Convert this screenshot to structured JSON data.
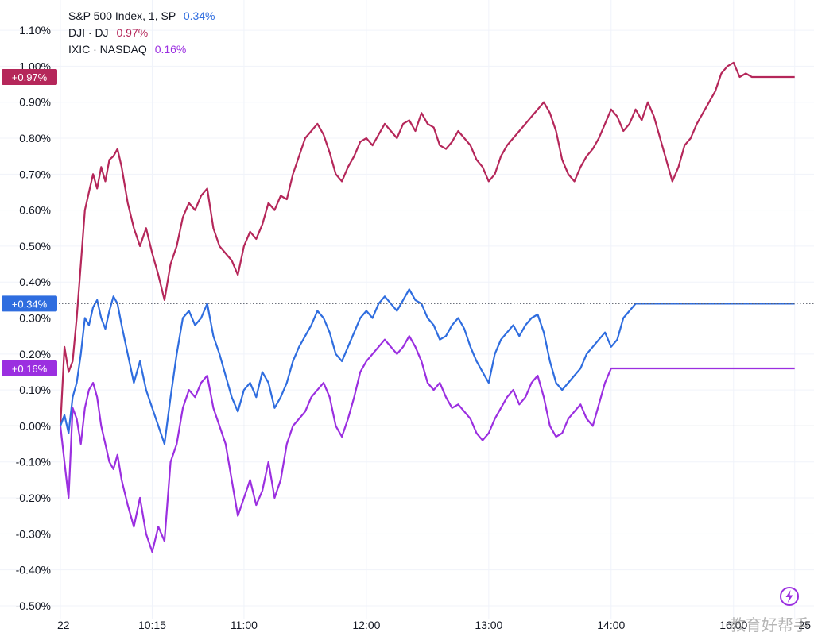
{
  "legend": [
    {
      "label": "S&P 500 Index, 1, SP",
      "value": "0.34%",
      "color": "#2f6ddf"
    },
    {
      "label": "DJI · DJ",
      "value": "0.97%",
      "color": "#b5275a"
    },
    {
      "label": "IXIC · NASDAQ",
      "value": "0.16%",
      "color": "#9b2fe0"
    }
  ],
  "price_badges": [
    {
      "text": "+0.97%",
      "value": 0.97,
      "color": "#b5275a"
    },
    {
      "text": "+0.34%",
      "value": 0.34,
      "color": "#2f6ddf"
    },
    {
      "text": "+0.16%",
      "value": 0.16,
      "color": "#9b2fe0"
    }
  ],
  "watermark": "教育好帮手",
  "icon_color": "#9b2fe0",
  "chart_data": {
    "type": "line",
    "y_ticks": [
      "1.10%",
      "1.00%",
      "0.90%",
      "0.80%",
      "0.70%",
      "0.60%",
      "0.50%",
      "0.40%",
      "0.30%",
      "0.20%",
      "0.10%",
      "0.00%",
      "-0.10%",
      "-0.20%",
      "-0.30%",
      "-0.40%",
      "-0.50%"
    ],
    "y_tick_values": [
      1.1,
      1.0,
      0.9,
      0.8,
      0.7,
      0.6,
      0.5,
      0.4,
      0.3,
      0.2,
      0.1,
      0.0,
      -0.1,
      -0.2,
      -0.3,
      -0.4,
      -0.5
    ],
    "x_ticks": [
      "22",
      "10:15",
      "11:00",
      "12:00",
      "13:00",
      "14:00",
      "16:00",
      "25"
    ],
    "x_tick_minutes": [
      30,
      75,
      120,
      180,
      240,
      300,
      360,
      390
    ],
    "ylim": [
      -0.52,
      1.14
    ],
    "xlim": [
      30,
      394
    ],
    "grid": true,
    "zero_line": true,
    "current_line_value": 0.34,
    "series": [
      {
        "name": "DJI · DJ",
        "color": "#b5275a",
        "x": [
          30,
          32,
          34,
          36,
          38,
          40,
          42,
          44,
          46,
          48,
          50,
          52,
          54,
          56,
          58,
          60,
          63,
          66,
          69,
          72,
          75,
          78,
          81,
          84,
          87,
          90,
          93,
          96,
          99,
          102,
          105,
          108,
          111,
          114,
          117,
          120,
          123,
          126,
          129,
          132,
          135,
          138,
          141,
          144,
          147,
          150,
          153,
          156,
          159,
          162,
          165,
          168,
          171,
          174,
          177,
          180,
          183,
          186,
          189,
          192,
          195,
          198,
          201,
          204,
          207,
          210,
          213,
          216,
          219,
          222,
          225,
          228,
          231,
          234,
          237,
          240,
          243,
          246,
          249,
          252,
          255,
          258,
          261,
          264,
          267,
          270,
          273,
          276,
          279,
          282,
          285,
          288,
          291,
          294,
          297,
          300,
          303,
          306,
          309,
          312,
          315,
          318,
          321,
          324,
          327,
          330,
          333,
          336,
          339,
          342,
          345,
          348,
          351,
          354,
          357,
          360,
          363,
          366,
          369,
          372,
          375,
          378,
          381,
          384,
          387,
          390
        ],
        "values": [
          0.0,
          0.22,
          0.15,
          0.18,
          0.3,
          0.45,
          0.6,
          0.65,
          0.7,
          0.66,
          0.72,
          0.68,
          0.74,
          0.75,
          0.77,
          0.72,
          0.62,
          0.55,
          0.5,
          0.55,
          0.48,
          0.42,
          0.35,
          0.45,
          0.5,
          0.58,
          0.62,
          0.6,
          0.64,
          0.66,
          0.55,
          0.5,
          0.48,
          0.46,
          0.42,
          0.5,
          0.54,
          0.52,
          0.56,
          0.62,
          0.6,
          0.64,
          0.63,
          0.7,
          0.75,
          0.8,
          0.82,
          0.84,
          0.81,
          0.76,
          0.7,
          0.68,
          0.72,
          0.75,
          0.79,
          0.8,
          0.78,
          0.81,
          0.84,
          0.82,
          0.8,
          0.84,
          0.85,
          0.82,
          0.87,
          0.84,
          0.83,
          0.78,
          0.77,
          0.79,
          0.82,
          0.8,
          0.78,
          0.74,
          0.72,
          0.68,
          0.7,
          0.75,
          0.78,
          0.8,
          0.82,
          0.84,
          0.86,
          0.88,
          0.9,
          0.87,
          0.82,
          0.74,
          0.7,
          0.68,
          0.72,
          0.75,
          0.77,
          0.8,
          0.84,
          0.88,
          0.86,
          0.82,
          0.84,
          0.88,
          0.85,
          0.9,
          0.86,
          0.8,
          0.74,
          0.68,
          0.72,
          0.78,
          0.8,
          0.84,
          0.87,
          0.9,
          0.93,
          0.98,
          1.0,
          1.01,
          0.97,
          0.98,
          0.97,
          0.97,
          0.97,
          0.97,
          0.97,
          0.97,
          0.97,
          0.97
        ]
      },
      {
        "name": "S&P 500 Index, 1, SP",
        "color": "#2f6ddf",
        "x": [
          30,
          32,
          34,
          36,
          38,
          40,
          42,
          44,
          46,
          48,
          50,
          52,
          54,
          56,
          58,
          60,
          63,
          66,
          69,
          72,
          75,
          78,
          81,
          84,
          87,
          90,
          93,
          96,
          99,
          102,
          105,
          108,
          111,
          114,
          117,
          120,
          123,
          126,
          129,
          132,
          135,
          138,
          141,
          144,
          147,
          150,
          153,
          156,
          159,
          162,
          165,
          168,
          171,
          174,
          177,
          180,
          183,
          186,
          189,
          192,
          195,
          198,
          201,
          204,
          207,
          210,
          213,
          216,
          219,
          222,
          225,
          228,
          231,
          234,
          237,
          240,
          243,
          246,
          249,
          252,
          255,
          258,
          261,
          264,
          267,
          270,
          273,
          276,
          279,
          282,
          285,
          288,
          291,
          294,
          297,
          300,
          303,
          306,
          309,
          312,
          315,
          318,
          321,
          324,
          327,
          330,
          333,
          336,
          339,
          342,
          345,
          348,
          351,
          354,
          357,
          360,
          363,
          366,
          369,
          372,
          375,
          378,
          381,
          384,
          387,
          390
        ],
        "values": [
          0.0,
          0.03,
          -0.02,
          0.08,
          0.12,
          0.2,
          0.3,
          0.28,
          0.33,
          0.35,
          0.3,
          0.27,
          0.32,
          0.36,
          0.34,
          0.28,
          0.2,
          0.12,
          0.18,
          0.1,
          0.05,
          0.0,
          -0.05,
          0.08,
          0.2,
          0.3,
          0.32,
          0.28,
          0.3,
          0.34,
          0.25,
          0.2,
          0.14,
          0.08,
          0.04,
          0.1,
          0.12,
          0.08,
          0.15,
          0.12,
          0.05,
          0.08,
          0.12,
          0.18,
          0.22,
          0.25,
          0.28,
          0.32,
          0.3,
          0.26,
          0.2,
          0.18,
          0.22,
          0.26,
          0.3,
          0.32,
          0.3,
          0.34,
          0.36,
          0.34,
          0.32,
          0.35,
          0.38,
          0.35,
          0.34,
          0.3,
          0.28,
          0.24,
          0.25,
          0.28,
          0.3,
          0.27,
          0.22,
          0.18,
          0.15,
          0.12,
          0.2,
          0.24,
          0.26,
          0.28,
          0.25,
          0.28,
          0.3,
          0.31,
          0.26,
          0.18,
          0.12,
          0.1,
          0.12,
          0.14,
          0.16,
          0.2,
          0.22,
          0.24,
          0.26,
          0.22,
          0.24,
          0.3,
          0.32,
          0.34,
          0.34,
          0.34,
          0.34,
          0.34,
          0.34,
          0.34,
          0.34,
          0.34,
          0.34,
          0.34,
          0.34,
          0.34,
          0.34,
          0.34,
          0.34,
          0.34,
          0.34,
          0.34,
          0.34,
          0.34,
          0.34,
          0.34,
          0.34,
          0.34,
          0.34,
          0.34
        ]
      },
      {
        "name": "IXIC · NASDAQ",
        "color": "#9b2fe0",
        "x": [
          30,
          32,
          34,
          36,
          38,
          40,
          42,
          44,
          46,
          48,
          50,
          52,
          54,
          56,
          58,
          60,
          63,
          66,
          69,
          72,
          75,
          78,
          81,
          84,
          87,
          90,
          93,
          96,
          99,
          102,
          105,
          108,
          111,
          114,
          117,
          120,
          123,
          126,
          129,
          132,
          135,
          138,
          141,
          144,
          147,
          150,
          153,
          156,
          159,
          162,
          165,
          168,
          171,
          174,
          177,
          180,
          183,
          186,
          189,
          192,
          195,
          198,
          201,
          204,
          207,
          210,
          213,
          216,
          219,
          222,
          225,
          228,
          231,
          234,
          237,
          240,
          243,
          246,
          249,
          252,
          255,
          258,
          261,
          264,
          267,
          270,
          273,
          276,
          279,
          282,
          285,
          288,
          291,
          294,
          297,
          300,
          303,
          306,
          309,
          312,
          315,
          318,
          321,
          324,
          327,
          330,
          333,
          336,
          339,
          342,
          345,
          348,
          351,
          354,
          357,
          360,
          363,
          366,
          369,
          372,
          375,
          378,
          381,
          384,
          387,
          390
        ],
        "values": [
          0.0,
          -0.1,
          -0.2,
          0.05,
          0.02,
          -0.05,
          0.05,
          0.1,
          0.12,
          0.08,
          0.0,
          -0.05,
          -0.1,
          -0.12,
          -0.08,
          -0.15,
          -0.22,
          -0.28,
          -0.2,
          -0.3,
          -0.35,
          -0.28,
          -0.32,
          -0.1,
          -0.05,
          0.05,
          0.1,
          0.08,
          0.12,
          0.14,
          0.05,
          0.0,
          -0.05,
          -0.15,
          -0.25,
          -0.2,
          -0.15,
          -0.22,
          -0.18,
          -0.1,
          -0.2,
          -0.15,
          -0.05,
          0.0,
          0.02,
          0.04,
          0.08,
          0.1,
          0.12,
          0.08,
          0.0,
          -0.03,
          0.02,
          0.08,
          0.15,
          0.18,
          0.2,
          0.22,
          0.24,
          0.22,
          0.2,
          0.22,
          0.25,
          0.22,
          0.18,
          0.12,
          0.1,
          0.12,
          0.08,
          0.05,
          0.06,
          0.04,
          0.02,
          -0.02,
          -0.04,
          -0.02,
          0.02,
          0.05,
          0.08,
          0.1,
          0.06,
          0.08,
          0.12,
          0.14,
          0.08,
          0.0,
          -0.03,
          -0.02,
          0.02,
          0.04,
          0.06,
          0.02,
          0.0,
          0.06,
          0.12,
          0.16,
          0.16,
          0.16,
          0.16,
          0.16,
          0.16,
          0.16,
          0.16,
          0.16,
          0.16,
          0.16,
          0.16,
          0.16,
          0.16,
          0.16,
          0.16,
          0.16,
          0.16,
          0.16,
          0.16,
          0.16,
          0.16,
          0.16,
          0.16,
          0.16,
          0.16,
          0.16,
          0.16,
          0.16,
          0.16,
          0.16
        ]
      }
    ]
  }
}
